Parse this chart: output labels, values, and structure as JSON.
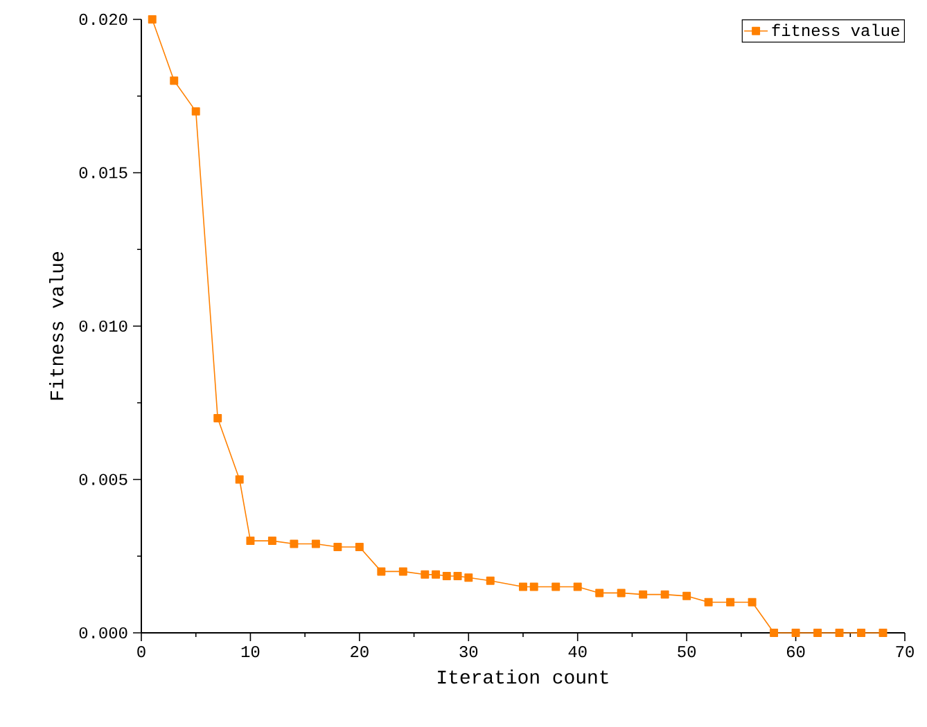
{
  "chart_data": {
    "type": "line",
    "xlabel": "Iteration count",
    "ylabel": "Fitness value",
    "x": [
      1,
      3,
      5,
      7,
      9,
      10,
      12,
      14,
      16,
      18,
      20,
      22,
      24,
      26,
      27,
      28,
      29,
      30,
      32,
      35,
      36,
      38,
      40,
      42,
      44,
      46,
      48,
      50,
      52,
      54,
      56,
      58,
      60,
      62,
      64,
      66,
      68
    ],
    "series": [
      {
        "name": "fitness value",
        "color": "#ff8000",
        "values": [
          0.02,
          0.018,
          0.017,
          0.007,
          0.005,
          0.003,
          0.003,
          0.0029,
          0.0029,
          0.0028,
          0.0028,
          0.002,
          0.002,
          0.0019,
          0.0019,
          0.00185,
          0.00185,
          0.0018,
          0.0017,
          0.0015,
          0.0015,
          0.0015,
          0.0015,
          0.0013,
          0.0013,
          0.00125,
          0.00125,
          0.0012,
          0.001,
          0.001,
          0.001,
          0,
          0,
          0,
          0,
          0,
          0
        ]
      }
    ],
    "xlim": [
      0,
      70
    ],
    "ylim": [
      0,
      0.02
    ],
    "xticks": [
      0,
      10,
      20,
      30,
      40,
      50,
      60,
      70
    ],
    "yticks": [
      {
        "value": 0,
        "label": "0.000"
      },
      {
        "value": 0.005,
        "label": "0.005"
      },
      {
        "value": 0.01,
        "label": "0.010"
      },
      {
        "value": 0.015,
        "label": "0.015"
      },
      {
        "value": 0.02,
        "label": "0.020"
      }
    ],
    "legend": "top right",
    "marker": "square",
    "line_style": "solid",
    "grid": false
  }
}
